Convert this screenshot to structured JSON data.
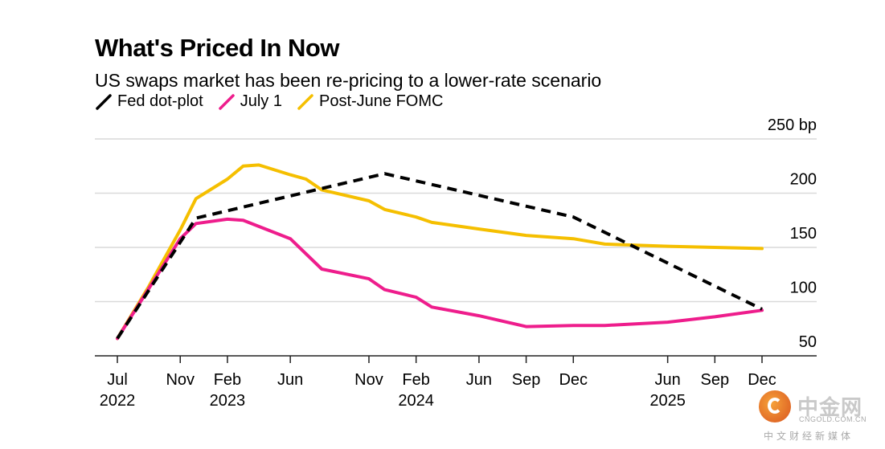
{
  "chart_data": {
    "type": "line",
    "title": "What's Priced In Now",
    "subtitle": "US swaps market has been re-pricing to a lower-rate scenario",
    "y_unit_label": "250 bp",
    "ylim": [
      50,
      250
    ],
    "y_ticks": [
      {
        "value": 250,
        "label": "250 bp"
      },
      {
        "value": 200,
        "label": "200"
      },
      {
        "value": 150,
        "label": "150"
      },
      {
        "value": 100,
        "label": "100"
      },
      {
        "value": 50,
        "label": "50"
      }
    ],
    "x_ticks": [
      {
        "date": "2022-07",
        "month": "Jul",
        "year": "2022"
      },
      {
        "date": "2022-11",
        "month": "Nov",
        "year": ""
      },
      {
        "date": "2023-02",
        "month": "Feb",
        "year": "2023"
      },
      {
        "date": "2023-06",
        "month": "Jun",
        "year": ""
      },
      {
        "date": "2023-11",
        "month": "Nov",
        "year": ""
      },
      {
        "date": "2024-02",
        "month": "Feb",
        "year": "2024"
      },
      {
        "date": "2024-06",
        "month": "Jun",
        "year": ""
      },
      {
        "date": "2024-09",
        "month": "Sep",
        "year": ""
      },
      {
        "date": "2024-12",
        "month": "Dec",
        "year": ""
      },
      {
        "date": "2025-06",
        "month": "Jun",
        "year": "2025"
      },
      {
        "date": "2025-09",
        "month": "Sep",
        "year": ""
      },
      {
        "date": "2025-12",
        "month": "Dec",
        "year": ""
      }
    ],
    "grid": true,
    "legend_position": "top-left",
    "series": [
      {
        "name": "Fed dot-plot",
        "color": "#000000",
        "dash": true,
        "points": [
          {
            "x": "2022-07",
            "y": 66
          },
          {
            "x": "2022-12",
            "y": 177
          },
          {
            "x": "2023-12",
            "y": 218
          },
          {
            "x": "2024-12",
            "y": 178
          },
          {
            "x": "2025-12",
            "y": 93
          }
        ]
      },
      {
        "name": "July 1",
        "color": "#ee1d8c",
        "dash": false,
        "points": [
          {
            "x": "2022-07",
            "y": 66
          },
          {
            "x": "2022-09",
            "y": 112
          },
          {
            "x": "2022-11",
            "y": 158
          },
          {
            "x": "2022-12",
            "y": 172
          },
          {
            "x": "2023-02",
            "y": 176
          },
          {
            "x": "2023-03",
            "y": 175
          },
          {
            "x": "2023-06",
            "y": 158
          },
          {
            "x": "2023-08",
            "y": 130
          },
          {
            "x": "2023-11",
            "y": 121
          },
          {
            "x": "2023-12",
            "y": 111
          },
          {
            "x": "2024-02",
            "y": 104
          },
          {
            "x": "2024-03",
            "y": 95
          },
          {
            "x": "2024-06",
            "y": 87
          },
          {
            "x": "2024-09",
            "y": 77
          },
          {
            "x": "2024-12",
            "y": 78
          },
          {
            "x": "2025-02",
            "y": 78
          },
          {
            "x": "2025-06",
            "y": 81
          },
          {
            "x": "2025-09",
            "y": 86
          },
          {
            "x": "2025-12",
            "y": 92
          }
        ]
      },
      {
        "name": "Post-June FOMC",
        "color": "#f5bf00",
        "dash": false,
        "points": [
          {
            "x": "2022-07",
            "y": 66
          },
          {
            "x": "2022-09",
            "y": 114
          },
          {
            "x": "2022-11",
            "y": 166
          },
          {
            "x": "2022-12",
            "y": 195
          },
          {
            "x": "2023-02",
            "y": 213
          },
          {
            "x": "2023-03",
            "y": 225
          },
          {
            "x": "2023-04",
            "y": 226
          },
          {
            "x": "2023-06",
            "y": 217
          },
          {
            "x": "2023-07",
            "y": 213
          },
          {
            "x": "2023-08",
            "y": 203
          },
          {
            "x": "2023-11",
            "y": 193
          },
          {
            "x": "2023-12",
            "y": 185
          },
          {
            "x": "2024-02",
            "y": 178
          },
          {
            "x": "2024-03",
            "y": 173
          },
          {
            "x": "2024-06",
            "y": 167
          },
          {
            "x": "2024-09",
            "y": 161
          },
          {
            "x": "2024-12",
            "y": 158
          },
          {
            "x": "2025-02",
            "y": 153
          },
          {
            "x": "2025-06",
            "y": 151
          },
          {
            "x": "2025-09",
            "y": 150
          },
          {
            "x": "2025-12",
            "y": 149
          }
        ]
      }
    ]
  },
  "watermark": {
    "name": "中金网",
    "url": "CNGOLD.COM.CN",
    "tagline": "中文财经新媒体"
  }
}
